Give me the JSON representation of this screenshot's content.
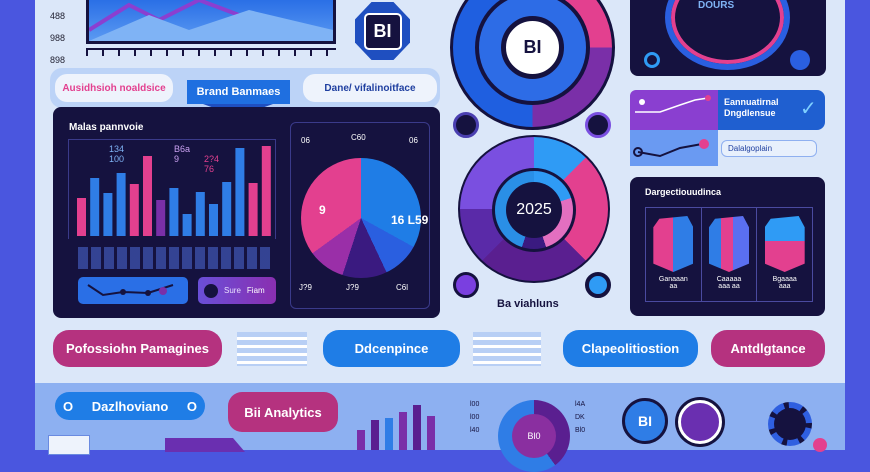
{
  "top": {
    "axis_labels": [
      "488",
      "988",
      "898"
    ],
    "bi_badge": "BI",
    "ring_badge": "BI",
    "top_right_label": "DOURS"
  },
  "tabs": [
    {
      "label": "Ausidhsioh noaldsice",
      "active": false
    },
    {
      "label": "Brand Banmaes",
      "active": true
    },
    {
      "label": "Dane/ vifalinoitface",
      "active": false
    }
  ],
  "panel": {
    "title": "Malas pannvoie",
    "bar_labels": [
      "134 100",
      "B6a 9",
      "2?4 76"
    ],
    "pie_labels": [
      "06",
      "C60",
      "06",
      "9",
      "16 L59"
    ],
    "pie_footers": [
      "J?9",
      "J?9",
      "C6l"
    ],
    "stat_text": [
      "Sure",
      "Fiam"
    ]
  },
  "donut": {
    "center": "2025",
    "caption": "Ba viahluns"
  },
  "right_card": {
    "title": "Eannuatirnal Dngdlensue",
    "input_value": "Dalalgoplain"
  },
  "dark_card": {
    "title": "Dargectiouudinca",
    "items": [
      {
        "l1": "Ganaaan",
        "l2": "aa"
      },
      {
        "l1": "Caaaaa",
        "l2": "aaa aa"
      },
      {
        "l1": "Bgaaaa",
        "l2": "aaa"
      }
    ]
  },
  "buttons": [
    "Pofossiohn Pamagines",
    "Ddcenpince",
    "Clapeolitiostion",
    "Antdlgtance"
  ],
  "bottom": {
    "pill_label": "Dazlhoviano",
    "pill_toggle_a": "O",
    "pill_toggle_b": "O",
    "analytics_button": "Bii Analytics",
    "ring_center": "Bl0",
    "ring_left": [
      "l00",
      "l00",
      "l40"
    ],
    "ring_right": [
      "l4A",
      "DK",
      "Bl0"
    ],
    "bi_badge": "BI"
  },
  "colors": {
    "accent_blue": "#1f7de6",
    "accent_pink": "#e3408f",
    "purple": "#7a2fa8",
    "navy": "#15123f"
  }
}
